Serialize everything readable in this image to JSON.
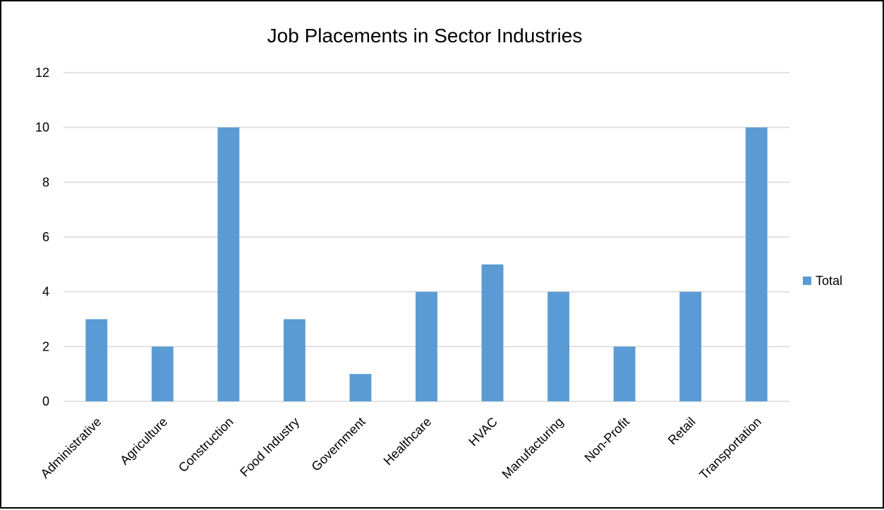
{
  "chart_data": {
    "type": "bar",
    "title": "Job Placements in Sector Industries",
    "xlabel": "",
    "ylabel": "",
    "categories": [
      "Administrative",
      "Agriculture",
      "Construction",
      "Food Industry",
      "Government",
      "Healthcare",
      "HVAC",
      "Manufacturing",
      "Non-Profit",
      "Retail",
      "Transportation"
    ],
    "series": [
      {
        "name": "Total",
        "values": [
          3,
          2,
          10,
          3,
          1,
          4,
          5,
          4,
          2,
          4,
          10
        ],
        "color": "#5B9BD5"
      }
    ],
    "ylim": [
      0,
      12
    ],
    "yticks": [
      0,
      2,
      4,
      6,
      8,
      10,
      12
    ],
    "grid": true,
    "legend_position": "right",
    "colors": {
      "gridline": "#D9D9D9",
      "axis": "#D9D9D9"
    }
  }
}
